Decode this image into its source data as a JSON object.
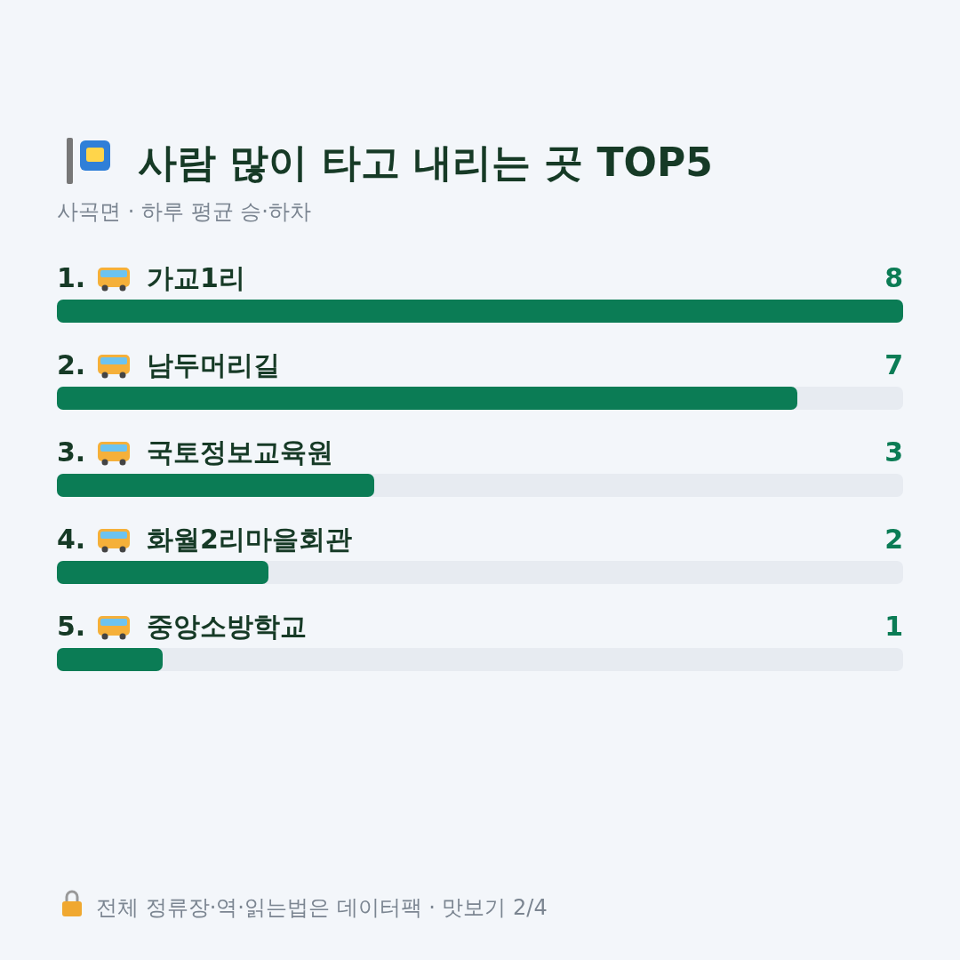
{
  "chart_data": {
    "type": "bar",
    "orientation": "horizontal",
    "title": "사람 많이 타고 내리는 곳 TOP5",
    "subtitle": "사곡면 · 하루 평균 승·하차",
    "categories": [
      "1. 가교1리",
      "2. 남두머리길",
      "3. 국토정보교육원",
      "4. 화월2리마을회관",
      "5. 중앙소방학교"
    ],
    "values": [
      8,
      7,
      3,
      2,
      1
    ],
    "color": "#0b7c55",
    "xlim": [
      0,
      8
    ],
    "data_labels": true,
    "annotations": [
      "전체 정류장·역·읽는법은 데이터팩 · 맛보기 2/4"
    ]
  }
}
